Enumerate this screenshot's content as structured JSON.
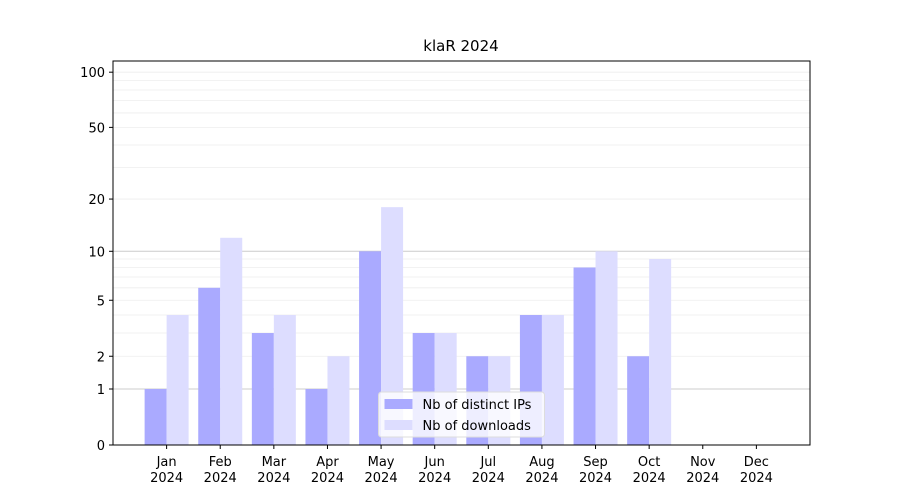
{
  "chart_data": {
    "type": "bar",
    "title": "klaR 2024",
    "categories": [
      "Jan\n2024",
      "Feb\n2024",
      "Mar\n2024",
      "Apr\n2024",
      "May\n2024",
      "Jun\n2024",
      "Jul\n2024",
      "Aug\n2024",
      "Sep\n2024",
      "Oct\n2024",
      "Nov\n2024",
      "Dec\n2024"
    ],
    "series": [
      {
        "name": "Nb of distinct IPs",
        "color": "#aaaaff",
        "values": [
          1,
          6,
          3,
          1,
          10,
          3,
          2,
          4,
          8,
          2,
          0,
          0
        ]
      },
      {
        "name": "Nb of downloads",
        "color": "#ddddff",
        "values": [
          4,
          12,
          4,
          2,
          18,
          3,
          2,
          4,
          10,
          9,
          0,
          0
        ]
      }
    ],
    "yscale": "log1p",
    "ylim": [
      0,
      115
    ],
    "yticks": [
      0,
      1,
      2,
      5,
      10,
      20,
      50,
      100
    ],
    "ygrid_major": [
      1,
      10
    ],
    "ygrid_minor": [
      2,
      3,
      4,
      5,
      6,
      7,
      8,
      9,
      20,
      30,
      40,
      50,
      60,
      70,
      80,
      90,
      100
    ],
    "legend": "lower center"
  }
}
